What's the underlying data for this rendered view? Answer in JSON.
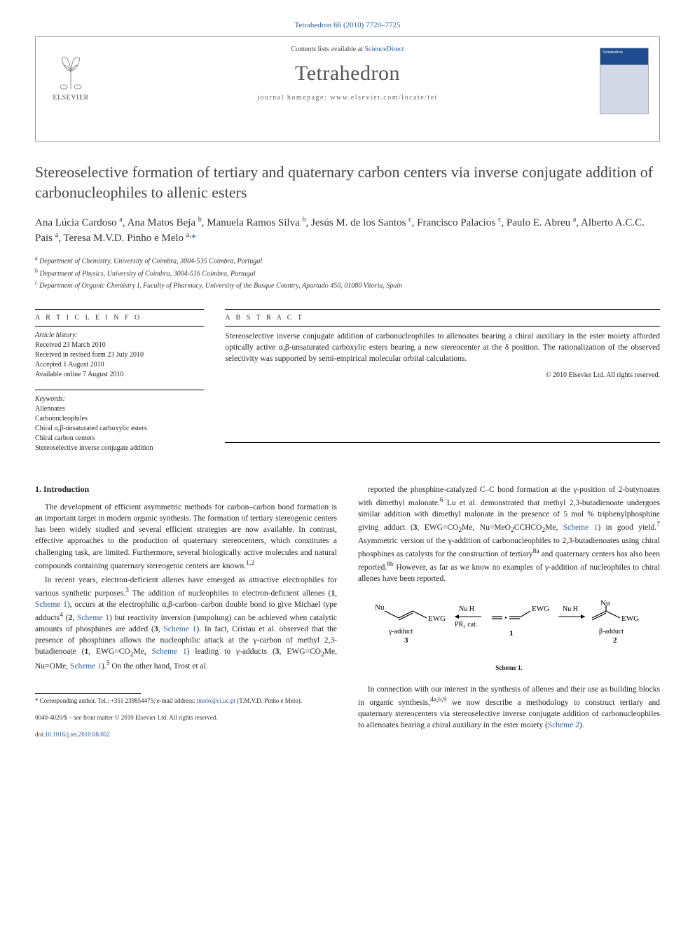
{
  "citation": "Tetrahedron 66 (2010) 7720–7725",
  "header": {
    "contents_prefix": "Contents lists available at ",
    "contents_link": "ScienceDirect",
    "journal_name": "Tetrahedron",
    "homepage_prefix": "journal homepage: ",
    "homepage_url": "www.elsevier.com/locate/tet",
    "publisher": "ELSEVIER",
    "cover_label": "Tetrahedron"
  },
  "title": "Stereoselective formation of tertiary and quaternary carbon centers via inverse conjugate addition of carbonucleophiles to allenic esters",
  "authors_html": "Ana Lúcia Cardoso <sup>a</sup>, Ana Matos Beja <sup>b</sup>, Manuela Ramos Silva <sup>b</sup>, Jesús M. de los Santos <sup>c</sup>, Francisco Palacios <sup>c</sup>, Paulo E. Abreu <sup>a</sup>, Alberto A.C.C. Pais <sup>a</sup>, Teresa M.V.D. Pinho e Melo <sup>a,</sup><span class='corr'>*</span>",
  "affiliations": [
    {
      "sup": "a",
      "text": "Department of Chemistry, University of Coimbra, 3004-535 Coimbra, Portugal"
    },
    {
      "sup": "b",
      "text": "Department of Physics, University of Coimbra, 3004-516 Coimbra, Portugal"
    },
    {
      "sup": "c",
      "text": "Department of Organic Chemistry I, Faculty of Pharmacy, University of the Basque Country, Apartado 450, 01080 Vitoria, Spain"
    }
  ],
  "article_info": {
    "label": "A R T I C L E   I N F O",
    "history_label": "Article history:",
    "history": [
      "Received 23 March 2010",
      "Received in revised form 23 July 2010",
      "Accepted 1 August 2010",
      "Available online 7 August 2010"
    ],
    "keywords_label": "Keywords:",
    "keywords": [
      "Allenoates",
      "Carbonucleophiles",
      "Chiral α,β-unsaturated carboxylic esters",
      "Chiral carbon centers",
      "Stereoselective inverse conjugate addition"
    ]
  },
  "abstract": {
    "label": "A B S T R A C T",
    "text": "Stereoselective inverse conjugate addition of carbonucleophiles to allenoates bearing a chiral auxiliary in the ester moiety afforded optically active α,β-unsaturated carboxylic esters bearing a new stereocenter at the δ position. The rationalization of the observed selectivity was supported by semi-empirical molecular orbital calculations.",
    "copyright": "© 2010 Elsevier Ltd. All rights reserved."
  },
  "body": {
    "heading": "1. Introduction",
    "left_paragraphs": [
      "The development of efficient asymmetric methods for carbon–carbon bond formation is an important target in modern organic synthesis. The formation of tertiary stereogenic centers has been widely studied and several efficient strategies are now available. In contrast, effective approaches to the production of quaternary stereocenters, which constitutes a challenging task, are limited. Furthermore, several biologically active molecules and natural compounds containing quaternary stereogenic centers are known.<sup>1,2</sup>",
      "In recent years, electron-deficient allenes have emerged as attractive electrophiles for various synthetic purposes.<sup>3</sup> The addition of nucleophiles to electron-deficient allenes (<b>1</b>, <a href='#'>Scheme 1</a>), occurs at the electrophilic α,β-carbon–carbon double bond to give Michael type adducts<sup>4</sup> (<b>2</b>, <a href='#'>Scheme 1</a>) but reactivity inversion (umpolung) can be achieved when catalytic amounts of phosphines are added (<b>3</b>, <a href='#'>Scheme 1</a>). In fact, Cristau et al. observed that the presence of phosphines allows the nucleophilic attack at the γ-carbon of methyl 2,3-butadienoate (<b>1</b>, EWG=CO<sub>2</sub>Me, <a href='#'>Scheme 1</a>) leading to γ-adducts (<b>3</b>, EWG=CO<sub>2</sub>Me, Nu=OMe, <a href='#'>Scheme 1</a>).<sup>5</sup> On the other hand, Trost et al."
    ],
    "right_paragraphs_top": [
      "reported the phosphine-catalyzed C–C bond formation at the γ-position of 2-butynoates with dimethyl malonate.<sup>6</sup> Lu et al. demonstrated that methyl 2,3-butadienoate undergoes similar addition with dimethyl malonate in the presence of 5 mol % triphenylphosphine giving adduct (<b>3</b>, EWG=CO<sub>2</sub>Me, Nu=MeO<sub>2</sub>CCHCO<sub>2</sub>Me, <a href='#'>Scheme 1</a>) in good yield.<sup>7</sup> Asymmetric version of the γ-addition of carbonucleophiles to 2,3-butadienoates using chiral phosphines as catalysts for the construction of tertiary<sup>8a</sup> and quaternary centers has also been reported.<sup>8b</sup> However, as far as we know no examples of γ-addition of nucleophiles to chiral allenes have been reported."
    ],
    "right_paragraphs_bottom": [
      "In connection with our interest in the synthesis of allenes and their use as building blocks in organic synthesis,<sup>4a,b,9</sup> we now describe a methodology to construct tertiary and quaternary stereocenters via stereoselective inverse conjugate addition of carbonucleophiles to allenoates bearing a chiral auxiliary in the ester moiety (<a href='#'>Scheme 2</a>)."
    ]
  },
  "scheme": {
    "caption": "Scheme 1.",
    "labels": {
      "nu_left": "Nu",
      "ewg_left": "EWG",
      "gamma_adduct": "γ-adduct",
      "num3": "3",
      "nuh1": "Nu H",
      "pr3": "PR₃ cat.",
      "ewg_mid": "EWG",
      "num1": "1",
      "nuh2": "Nu H",
      "nu_right": "Nu",
      "ewg_right": "EWG",
      "beta_adduct": "β-adduct",
      "num2": "2"
    }
  },
  "footnote": {
    "text_prefix": "* Corresponding author. Tel.: +351 239854475; e-mail address: ",
    "email": "tmelo@ci.uc.pt",
    "text_suffix": " (T.M.V.D. Pinho e Melo).",
    "issn": "0040-4020/$ – see front matter © 2010 Elsevier Ltd. All rights reserved.",
    "doi_prefix": "doi:",
    "doi": "10.1016/j.tet.2010.08.002"
  }
}
